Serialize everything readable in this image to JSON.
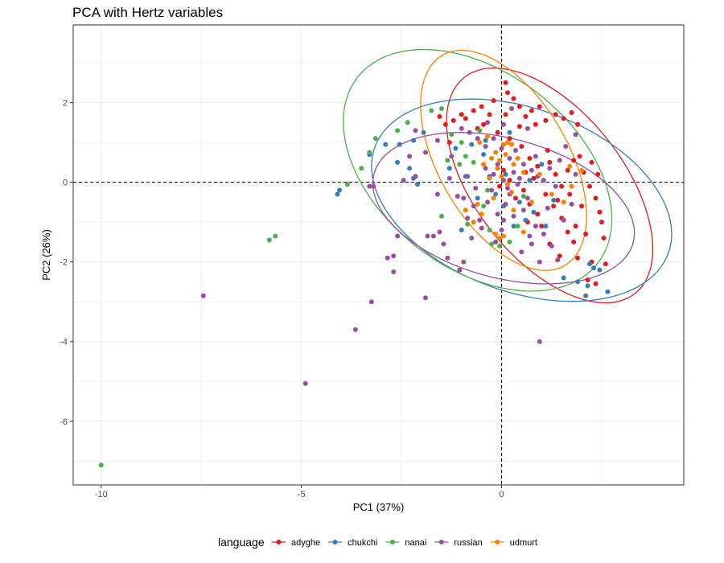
{
  "chart_data": {
    "type": "scatter",
    "title": "PCA with Hertz variables",
    "xlabel": "PC1 (37%)",
    "ylabel": "PC2 (26%)",
    "xlim": [
      -10.7,
      4.55
    ],
    "ylim": [
      -7.6,
      3.95
    ],
    "xticks": [
      -10,
      -5,
      0
    ],
    "yticks": [
      -6,
      -4,
      -2,
      0,
      2
    ],
    "grid": true,
    "reference_lines": {
      "x": 0,
      "y": 0,
      "style": "dashed"
    },
    "legend": {
      "title": "language",
      "position": "bottom"
    },
    "colors": {
      "adyghe": "#e41a1c",
      "chukchi": "#377eb8",
      "nanai": "#4daf4a",
      "russian": "#984ea3",
      "udmurt": "#ff7f00"
    },
    "ellipses": [
      {
        "name": "adyghe",
        "center": [
          1.2,
          -0.08
        ],
        "angle_deg": -52,
        "rx": 3.45,
        "ry": 1.85
      },
      {
        "name": "chukchi",
        "center": [
          0.5,
          -0.45
        ],
        "angle_deg": -20,
        "rx": 3.9,
        "ry": 2.3
      },
      {
        "name": "nanai",
        "center": [
          -0.6,
          0.3
        ],
        "angle_deg": -38,
        "rx": 3.8,
        "ry": 2.45
      },
      {
        "name": "russian",
        "center": [
          0.05,
          -0.65
        ],
        "angle_deg": -15,
        "rx": 3.35,
        "ry": 1.75
      },
      {
        "name": "udmurt",
        "center": [
          0.05,
          0.55
        ],
        "angle_deg": -60,
        "rx": 3.05,
        "ry": 1.62
      }
    ],
    "series": [
      {
        "name": "adyghe",
        "points": [
          [
            -1.55,
            1.65
          ],
          [
            -1.4,
            1.45
          ],
          [
            -1.3,
            1.0
          ],
          [
            -1.2,
            1.55
          ],
          [
            -0.9,
            1.6
          ],
          [
            -0.7,
            1.8
          ],
          [
            -0.5,
            1.9
          ],
          [
            -0.3,
            1.7
          ],
          [
            -0.2,
            2.05
          ],
          [
            -0.6,
            1.35
          ],
          [
            0.1,
            2.5
          ],
          [
            0.15,
            2.25
          ],
          [
            0.3,
            2.1
          ],
          [
            0.45,
            1.9
          ],
          [
            0.6,
            1.65
          ],
          [
            0.75,
            1.8
          ],
          [
            0.85,
            1.45
          ],
          [
            0.95,
            1.9
          ],
          [
            1.1,
            1.55
          ],
          [
            1.35,
            1.7
          ],
          [
            1.55,
            1.6
          ],
          [
            1.75,
            1.75
          ],
          [
            1.9,
            1.45
          ],
          [
            -0.1,
            1.25
          ],
          [
            0.2,
            1.1
          ],
          [
            0.5,
            0.9
          ],
          [
            0.7,
            0.6
          ],
          [
            0.9,
            0.4
          ],
          [
            1.2,
            0.5
          ],
          [
            1.35,
            0.2
          ],
          [
            1.5,
            -0.1
          ],
          [
            1.65,
            0.3
          ],
          [
            1.8,
            0.55
          ],
          [
            2.05,
            0.25
          ],
          [
            2.2,
            -0.1
          ],
          [
            2.35,
            -0.4
          ],
          [
            2.45,
            -0.75
          ],
          [
            2.5,
            -1.0
          ],
          [
            2.55,
            -1.4
          ],
          [
            2.6,
            -2.05
          ],
          [
            2.25,
            -2.0
          ],
          [
            2.15,
            -2.45
          ],
          [
            2.35,
            -2.55
          ],
          [
            1.9,
            -1.9
          ],
          [
            1.8,
            -1.5
          ],
          [
            1.65,
            -1.25
          ],
          [
            1.5,
            -0.9
          ],
          [
            1.3,
            -0.6
          ],
          [
            1.1,
            -0.3
          ],
          [
            0.9,
            -0.8
          ],
          [
            0.7,
            -0.55
          ],
          [
            0.55,
            -0.2
          ],
          [
            0.35,
            -0.4
          ],
          [
            0.2,
            0.05
          ],
          [
            0.05,
            0.3
          ],
          [
            -0.05,
            -0.1
          ],
          [
            0.8,
            0.1
          ],
          [
            1.0,
            -1.1
          ],
          [
            1.2,
            -1.55
          ],
          [
            1.45,
            -1.85
          ],
          [
            1.7,
            -0.3
          ],
          [
            2.0,
            -0.6
          ],
          [
            2.25,
            0.5
          ],
          [
            1.95,
            0.65
          ],
          [
            0.45,
            1.4
          ],
          [
            -0.45,
            1.45
          ],
          [
            1.15,
            0.8
          ],
          [
            0.6,
            0.25
          ],
          [
            1.4,
            -0.45
          ],
          [
            0.1,
            1.7
          ],
          [
            -1.0,
            1.7
          ],
          [
            0.65,
            -1.0
          ],
          [
            1.85,
            -1.1
          ],
          [
            2.4,
            0.2
          ],
          [
            2.1,
            -1.3
          ]
        ]
      },
      {
        "name": "chukchi",
        "points": [
          [
            -4.1,
            -0.3
          ],
          [
            -4.05,
            -0.2
          ],
          [
            -3.3,
            0.7
          ],
          [
            -2.9,
            0.95
          ],
          [
            -2.55,
            0.95
          ],
          [
            -2.6,
            0.5
          ],
          [
            -2.3,
            0.35
          ],
          [
            -2.2,
            0.1
          ],
          [
            -2.1,
            -0.05
          ],
          [
            -2.2,
            1.05
          ],
          [
            -1.95,
            1.25
          ],
          [
            -1.3,
            0.35
          ],
          [
            -1.15,
            0.85
          ],
          [
            -0.85,
            0.15
          ],
          [
            -0.75,
            0.95
          ],
          [
            -0.45,
            0.7
          ],
          [
            -0.3,
            0.15
          ],
          [
            -0.15,
            -0.3
          ],
          [
            0.05,
            -0.6
          ],
          [
            0.1,
            0.2
          ],
          [
            0.3,
            -1.1
          ],
          [
            0.45,
            -0.5
          ],
          [
            0.6,
            -0.95
          ],
          [
            0.8,
            -0.75
          ],
          [
            1.1,
            -1.1
          ],
          [
            1.3,
            -0.45
          ],
          [
            1.55,
            -2.4
          ],
          [
            1.9,
            -2.5
          ],
          [
            2.15,
            -2.6
          ],
          [
            2.2,
            -2.05
          ],
          [
            2.3,
            -2.15
          ],
          [
            2.45,
            -2.2
          ],
          [
            2.65,
            -2.75
          ],
          [
            2.1,
            -2.85
          ],
          [
            -0.6,
            -0.4
          ],
          [
            0.7,
            0.05
          ],
          [
            -0.4,
            1.05
          ],
          [
            0.2,
            1.25
          ],
          [
            -1.0,
            -1.2
          ],
          [
            1.0,
            0.45
          ]
        ]
      },
      {
        "name": "nanai",
        "points": [
          [
            -10.0,
            -7.1
          ],
          [
            -5.8,
            -1.45
          ],
          [
            -5.65,
            -1.35
          ],
          [
            -3.85,
            -0.05
          ],
          [
            -3.5,
            0.35
          ],
          [
            -3.3,
            0.75
          ],
          [
            -3.15,
            1.1
          ],
          [
            -2.6,
            1.3
          ],
          [
            -2.35,
            1.5
          ],
          [
            -1.75,
            1.8
          ],
          [
            -1.5,
            1.85
          ],
          [
            -1.25,
            1.2
          ],
          [
            -1.35,
            0.55
          ],
          [
            -1.5,
            -0.85
          ],
          [
            -1.0,
            1.0
          ],
          [
            -0.9,
            0.65
          ],
          [
            -0.7,
            0.5
          ],
          [
            -0.45,
            -0.6
          ],
          [
            -0.3,
            -1.2
          ],
          [
            -0.25,
            -1.55
          ],
          [
            -0.05,
            -1.6
          ],
          [
            0.2,
            -1.5
          ],
          [
            0.4,
            -1.1
          ],
          [
            0.55,
            -0.35
          ],
          [
            -0.85,
            -1.05
          ],
          [
            -0.55,
            1.3
          ],
          [
            -1.05,
            0.45
          ],
          [
            -0.35,
            -0.2
          ]
        ]
      },
      {
        "name": "russian",
        "points": [
          [
            -7.45,
            -2.85
          ],
          [
            -4.9,
            -5.05
          ],
          [
            -3.65,
            -3.7
          ],
          [
            -3.25,
            -3.0
          ],
          [
            -2.85,
            -1.9
          ],
          [
            -2.7,
            -1.85
          ],
          [
            -2.7,
            -2.25
          ],
          [
            -2.6,
            -1.35
          ],
          [
            -1.9,
            -2.9
          ],
          [
            -1.85,
            -1.35
          ],
          [
            -1.7,
            -1.35
          ],
          [
            -1.55,
            -1.25
          ],
          [
            -1.45,
            -1.55
          ],
          [
            -1.35,
            -1.9
          ],
          [
            -0.95,
            -2.0
          ],
          [
            -0.95,
            -0.4
          ],
          [
            -0.85,
            -0.9
          ],
          [
            -0.7,
            -0.6
          ],
          [
            -0.55,
            -0.95
          ],
          [
            -0.35,
            -0.5
          ],
          [
            -0.25,
            -0.2
          ],
          [
            -0.1,
            -0.8
          ],
          [
            0.0,
            -1.2
          ],
          [
            0.05,
            -0.95
          ],
          [
            0.1,
            -0.55
          ],
          [
            0.2,
            -0.3
          ],
          [
            0.3,
            -0.85
          ],
          [
            0.4,
            -0.05
          ],
          [
            0.55,
            -0.7
          ],
          [
            0.7,
            -1.35
          ],
          [
            0.85,
            -1.1
          ],
          [
            0.95,
            -2.0
          ],
          [
            1.05,
            -1.3
          ],
          [
            1.25,
            -1.6
          ],
          [
            1.4,
            -1.95
          ],
          [
            0.95,
            -4.0
          ],
          [
            -3.2,
            -0.1
          ],
          [
            -3.3,
            -0.1
          ],
          [
            -2.45,
            0.05
          ],
          [
            -2.15,
            0.15
          ],
          [
            -2.15,
            1.3
          ],
          [
            -2.3,
            0.65
          ],
          [
            -1.9,
            0.75
          ],
          [
            -1.6,
            1.05
          ],
          [
            -1.25,
            0.65
          ],
          [
            -1.0,
            1.35
          ],
          [
            -0.8,
            1.25
          ],
          [
            -0.6,
            1.1
          ],
          [
            -0.4,
            0.9
          ],
          [
            -0.2,
            1.1
          ],
          [
            0.0,
            0.85
          ],
          [
            0.2,
            0.6
          ],
          [
            0.35,
            0.8
          ],
          [
            0.55,
            0.45
          ],
          [
            0.75,
            0.3
          ],
          [
            0.9,
            0.15
          ],
          [
            1.05,
            0.05
          ],
          [
            1.2,
            0.35
          ],
          [
            1.45,
            0.55
          ],
          [
            1.6,
            0.9
          ],
          [
            1.85,
            1.2
          ],
          [
            1.85,
            0.2
          ],
          [
            0.65,
            1.35
          ],
          [
            0.25,
            1.85
          ],
          [
            -0.4,
            0.35
          ],
          [
            -0.2,
            0.2
          ],
          [
            0.05,
            0.05
          ],
          [
            0.15,
            -0.15
          ],
          [
            0.3,
            0.25
          ],
          [
            0.45,
            0.1
          ],
          [
            -0.65,
            -0.15
          ],
          [
            -0.9,
            0.15
          ],
          [
            -1.1,
            -0.35
          ],
          [
            -1.3,
            0.1
          ],
          [
            -0.75,
            -1.4
          ],
          [
            -0.5,
            -1.15
          ],
          [
            -0.15,
            -1.5
          ],
          [
            0.5,
            -1.75
          ],
          [
            0.75,
            -1.55
          ],
          [
            -1.05,
            -2.2
          ],
          [
            0.05,
            1.45
          ],
          [
            -0.35,
            1.5
          ],
          [
            0.65,
            -0.4
          ],
          [
            1.15,
            -0.65
          ],
          [
            1.55,
            -0.95
          ],
          [
            1.75,
            -0.55
          ],
          [
            1.35,
            -0.1
          ],
          [
            -0.1,
            0.45
          ],
          [
            0.85,
            0.65
          ],
          [
            -1.6,
            -0.3
          ]
        ]
      },
      {
        "name": "udmurt",
        "points": [
          [
            -0.55,
            1.0
          ],
          [
            -0.35,
            1.15
          ],
          [
            -0.15,
            0.75
          ],
          [
            -0.05,
            0.55
          ],
          [
            0.05,
            0.95
          ],
          [
            0.1,
            0.7
          ],
          [
            0.15,
            1.0
          ],
          [
            0.25,
            0.95
          ],
          [
            0.3,
            0.45
          ],
          [
            -0.1,
            0.35
          ],
          [
            0.0,
            0.15
          ],
          [
            0.4,
            0.6
          ],
          [
            -0.3,
            0.1
          ],
          [
            0.15,
            -0.05
          ],
          [
            0.25,
            -0.25
          ],
          [
            -0.2,
            -0.4
          ],
          [
            -0.6,
            -0.55
          ],
          [
            -0.5,
            -0.8
          ],
          [
            -0.9,
            -0.7
          ],
          [
            -0.7,
            -1.0
          ],
          [
            -0.15,
            -1.3
          ],
          [
            -0.05,
            -1.4
          ],
          [
            0.05,
            -1.35
          ],
          [
            0.3,
            -0.7
          ],
          [
            0.55,
            -1.25
          ],
          [
            0.75,
            -0.5
          ],
          [
            0.95,
            0.2
          ],
          [
            1.25,
            -0.3
          ],
          [
            1.55,
            -0.5
          ],
          [
            1.75,
            -0.1
          ],
          [
            2.0,
            0.3
          ],
          [
            1.7,
            0.4
          ],
          [
            -0.45,
            0.45
          ],
          [
            0.55,
            0.25
          ],
          [
            -0.25,
            0.6
          ]
        ]
      }
    ]
  }
}
